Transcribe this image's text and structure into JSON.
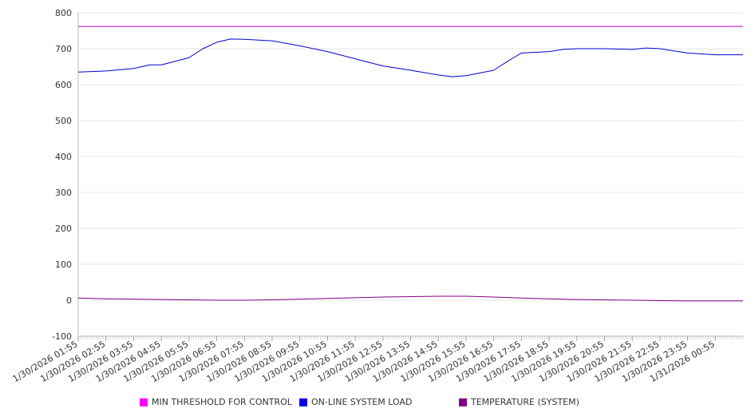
{
  "chart_data": {
    "type": "line",
    "title": "",
    "xlabel": "",
    "ylabel": "",
    "ylim": [
      -100,
      800
    ],
    "yticks": [
      -100,
      0,
      100,
      200,
      300,
      400,
      500,
      600,
      700,
      800
    ],
    "xrange": [
      "1/30/2026 01:55",
      "1/31/2026 01:55"
    ],
    "xticks": [
      "1/30/2026 01:55",
      "1/30/2026 02:55",
      "1/30/2026 03:55",
      "1/30/2026 04:55",
      "1/30/2026 05:55",
      "1/30/2026 06:55",
      "1/30/2026 07:55",
      "1/30/2026 08:55",
      "1/30/2026 09:55",
      "1/30/2026 10:55",
      "1/30/2026 11:55",
      "1/30/2026 12:55",
      "1/30/2026 13:55",
      "1/30/2026 14:55",
      "1/30/2026 15:55",
      "1/30/2026 16:55",
      "1/30/2026 17:55",
      "1/30/2026 18:55",
      "1/30/2026 19:55",
      "1/30/2026 20:55",
      "1/30/2026 21:55",
      "1/30/2026 22:55",
      "1/30/2026 23:55",
      "1/31/2026 00:55"
    ],
    "grid": {
      "horizontal": true,
      "vertical": false
    },
    "legend_position": "bottom",
    "series": [
      {
        "name": "MIN THRESHOLD FOR CONTROL",
        "color": "#c000c0",
        "x": [
          "1/30/2026 01:55",
          "1/31/2026 01:55"
        ],
        "y": [
          762,
          762
        ]
      },
      {
        "name": "ON-LINE SYSTEM LOAD",
        "color": "#0000cc",
        "x": [
          "1/30/2026 01:55",
          "1/30/2026 02:55",
          "1/30/2026 03:55",
          "1/30/2026 04:30",
          "1/30/2026 04:55",
          "1/30/2026 05:55",
          "1/30/2026 06:25",
          "1/30/2026 06:55",
          "1/30/2026 07:25",
          "1/30/2026 07:55",
          "1/30/2026 08:55",
          "1/30/2026 09:55",
          "1/30/2026 10:55",
          "1/30/2026 11:55",
          "1/30/2026 12:55",
          "1/30/2026 13:55",
          "1/30/2026 14:55",
          "1/30/2026 15:25",
          "1/30/2026 15:55",
          "1/30/2026 16:55",
          "1/30/2026 17:25",
          "1/30/2026 17:55",
          "1/30/2026 18:55",
          "1/30/2026 19:25",
          "1/30/2026 19:55",
          "1/30/2026 20:55",
          "1/30/2026 21:55",
          "1/30/2026 22:25",
          "1/30/2026 22:55",
          "1/30/2026 23:55",
          "1/31/2026 00:55",
          "1/31/2026 01:55"
        ],
        "y": [
          635,
          638,
          645,
          655,
          655,
          675,
          700,
          718,
          727,
          726,
          722,
          708,
          692,
          672,
          652,
          640,
          627,
          622,
          625,
          640,
          665,
          688,
          692,
          698,
          700,
          700,
          698,
          702,
          700,
          688,
          683,
          683
        ]
      },
      {
        "name": "TEMPERATURE (SYSTEM)",
        "color": "#800080",
        "x": [
          "1/30/2026 01:55",
          "1/30/2026 02:55",
          "1/30/2026 03:55",
          "1/30/2026 04:55",
          "1/30/2026 05:55",
          "1/30/2026 06:55",
          "1/30/2026 07:55",
          "1/30/2026 08:55",
          "1/30/2026 09:55",
          "1/30/2026 10:55",
          "1/30/2026 11:55",
          "1/30/2026 12:55",
          "1/30/2026 13:55",
          "1/30/2026 14:55",
          "1/30/2026 15:55",
          "1/30/2026 16:55",
          "1/30/2026 17:55",
          "1/30/2026 18:55",
          "1/30/2026 19:55",
          "1/30/2026 20:55",
          "1/30/2026 21:55",
          "1/30/2026 22:55",
          "1/30/2026 23:55",
          "1/31/2026 00:55",
          "1/31/2026 01:55"
        ],
        "y": [
          6,
          4,
          3,
          2,
          1,
          0,
          0,
          1,
          3,
          5,
          7,
          9,
          10,
          11,
          11,
          9,
          6,
          4,
          2,
          1,
          0,
          -1,
          -2,
          -2,
          -2
        ]
      }
    ]
  }
}
